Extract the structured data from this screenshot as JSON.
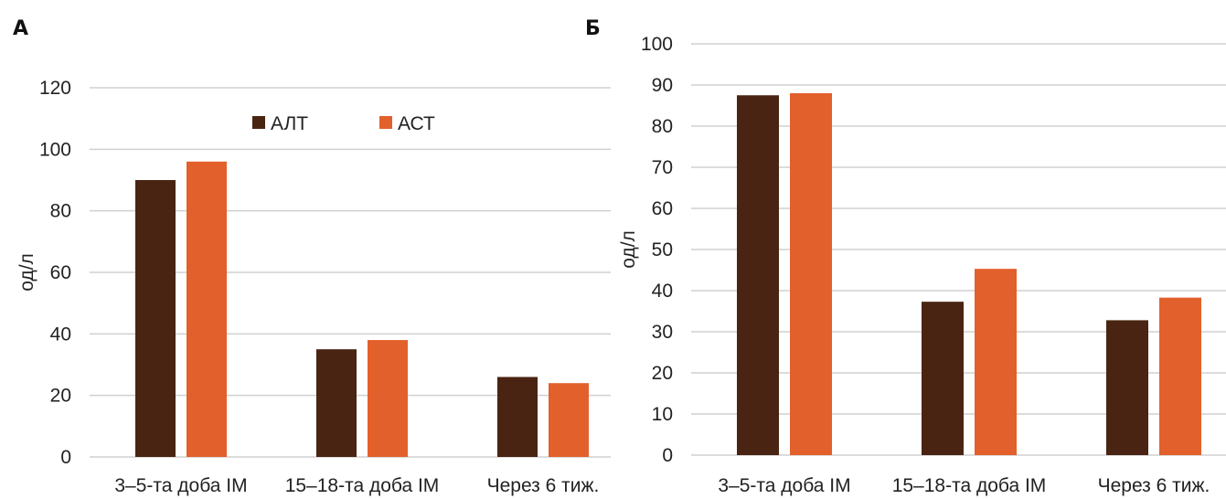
{
  "chart_data": [
    {
      "type": "bar",
      "panel_label": "А",
      "categories": [
        "3–5-та доба ІМ",
        "15–18-та доба ІМ",
        "Через 6 тиж."
      ],
      "series": [
        {
          "name": "АЛТ",
          "values": [
            90,
            35,
            26
          ],
          "color": "#4a2412"
        },
        {
          "name": "АСТ",
          "values": [
            96,
            38,
            24
          ],
          "color": "#e2602b"
        }
      ],
      "ylabel": "од/л",
      "ylim": [
        0,
        120
      ],
      "yticks": [
        0,
        20,
        40,
        60,
        80,
        100,
        120
      ],
      "grid": true,
      "legend": "top-center"
    },
    {
      "type": "bar",
      "panel_label": "Б",
      "categories": [
        "3–5-та доба ІМ",
        "15–18-та доба ІМ",
        "Через 6 тиж."
      ],
      "series": [
        {
          "name": "АЛТ",
          "values": [
            87.5,
            37.3,
            32.8
          ],
          "color": "#4a2412"
        },
        {
          "name": "АСТ",
          "values": [
            88,
            45.3,
            38.3
          ],
          "color": "#e2602b"
        }
      ],
      "ylabel": "од/л",
      "ylim": [
        0,
        100
      ],
      "yticks": [
        0,
        10,
        20,
        30,
        40,
        50,
        60,
        70,
        80,
        90,
        100
      ],
      "grid": true,
      "legend": "none"
    }
  ]
}
